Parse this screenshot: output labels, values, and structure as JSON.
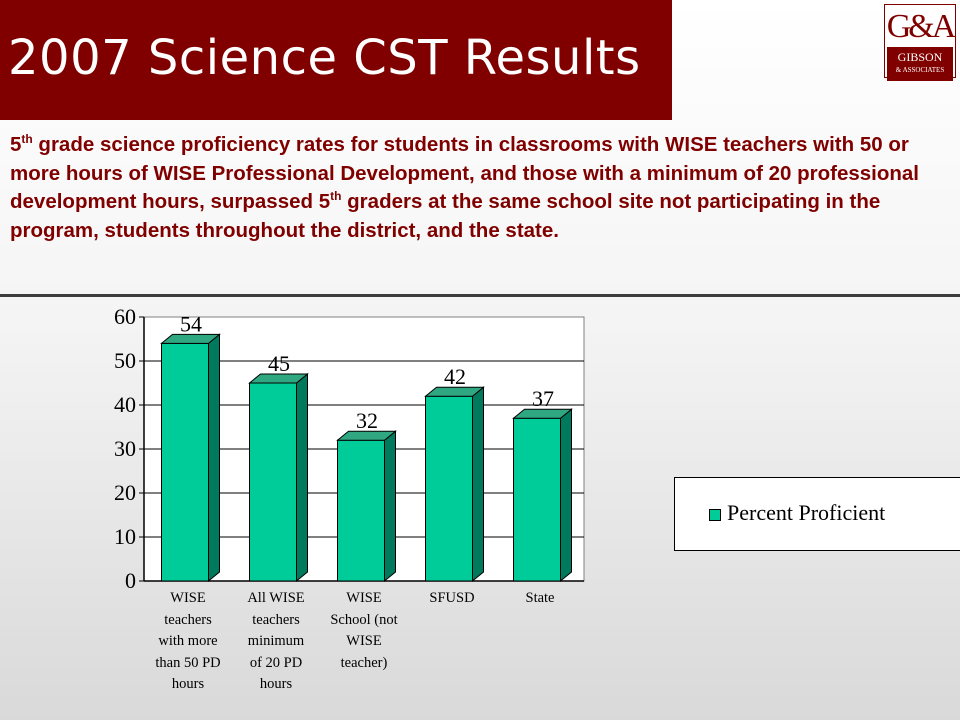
{
  "slide": {
    "title": "2007 Science CST Results",
    "description": {
      "p1_pre": "5",
      "p1_sup": "th",
      "p1_text": " grade science proficiency rates for students in classrooms with WISE teachers with 50 or more hours of WISE Professional Development, and those with a minimum of 20 professional development hours, surpassed ",
      "p2_pre": "5",
      "p2_sup": "th",
      "p2_text": " graders at the same school site not participating in the program, students throughout the district, and the state."
    }
  },
  "logo": {
    "monogram": "G&A",
    "name": "GIBSON",
    "sub": "& ASSOCIATES"
  },
  "colors": {
    "title_bar": "#800000",
    "bar_front": "#00cc99",
    "bar_side": "#007a5c",
    "bar_top": "#2fa882"
  },
  "chart_data": {
    "type": "bar",
    "categories": [
      "WISE teachers with more than 50 PD hours",
      "All WISE teachers minimum of 20 PD hours",
      "WISE School (not WISE teacher)",
      "SFUSD",
      "State"
    ],
    "category_labels": [
      "WISE\nteachers\nwith more\nthan 50 PD\nhours",
      "All WISE\nteachers\nminimum\nof 20 PD\nhours",
      "WISE\nSchool (not\nWISE\nteacher)",
      "SFUSD",
      "State"
    ],
    "series": [
      {
        "name": "Percent Proficient",
        "values": [
          54,
          45,
          32,
          42,
          37
        ]
      }
    ],
    "ylim": [
      0,
      60
    ],
    "yticks": [
      0,
      10,
      20,
      30,
      40,
      50,
      60
    ],
    "grid": true,
    "legend_position": "right",
    "title": "",
    "xlabel": "",
    "ylabel": ""
  }
}
